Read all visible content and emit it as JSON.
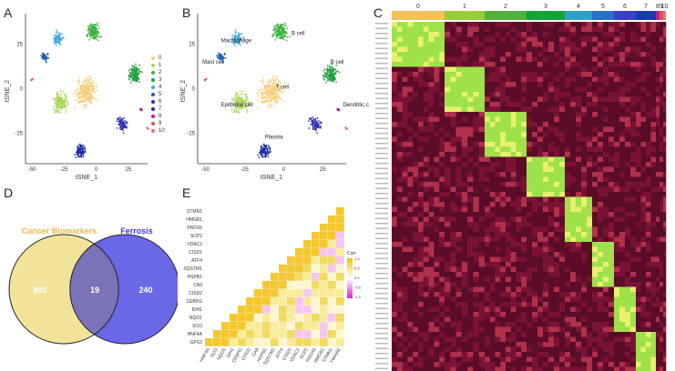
{
  "panels": {
    "A": {
      "label": "A",
      "xlabel": "tSNE_1",
      "ylabel": "tSNE_2",
      "xticks": [
        "-50",
        "-25",
        "0",
        "25"
      ],
      "yticks": [
        "25",
        "0",
        "-25"
      ],
      "legend": [
        "0",
        "1",
        "2",
        "3",
        "4",
        "5",
        "6",
        "7",
        "8",
        "9",
        "10"
      ]
    },
    "B": {
      "label": "B",
      "xlabel": "tSNE_1",
      "ylabel": "tSNE_2",
      "xticks": [
        "-50",
        "-25",
        "0",
        "25"
      ],
      "yticks": [
        "25",
        "0",
        "-25"
      ],
      "cell_labels": [
        "Macrophage",
        "Mast cell",
        "T cell",
        "Epithelial cell",
        "Dendritic c",
        "Plasma",
        "B cell",
        "B cell"
      ]
    },
    "C": {
      "label": "C",
      "clusters": [
        "0",
        "1",
        "2",
        "3",
        "4",
        "5",
        "6",
        "7",
        "8",
        "9",
        "10"
      ]
    },
    "D": {
      "label": "D",
      "set_a": "Cancer Biomarkers",
      "set_b": "Ferrosis",
      "only_a": "892",
      "overlap": "19",
      "only_b": "240"
    },
    "E": {
      "label": "E",
      "genes": [
        "STMN1",
        "HMGB1",
        "PRDX6",
        "SCP2",
        "VDAC2",
        "CISD1",
        "ATF4",
        "SQSTM1",
        "HSPB1",
        "CA9",
        "CISD2",
        "CEBPG",
        "IDH1",
        "NQO1",
        "SCO",
        "HNF4A",
        "GPX2"
      ],
      "xgenes": [
        "HNF4A",
        "SCO",
        "NQO1",
        "IDH1",
        "CEBPG",
        "CISD2",
        "CA9",
        "HSPB1",
        "SQSTM1",
        "ATF4",
        "CISD1",
        "VDAC2",
        "SCP2",
        "PRDX6",
        "HMGB1",
        "STMN1",
        "YWHAE"
      ],
      "legend_title": "Corr",
      "legend_ticks": [
        "1.0",
        "0.5",
        "0.0",
        "-0.5",
        "-1.0"
      ]
    }
  },
  "chart_data": [
    {
      "type": "scatter",
      "title": "A",
      "xlabel": "tSNE_1",
      "ylabel": "tSNE_2",
      "xlim": [
        -55,
        40
      ],
      "ylim": [
        -42,
        42
      ],
      "series": [
        {
          "name": "0",
          "color": "#f5cd7a",
          "center": [
            -8,
            -2
          ],
          "spread": 8,
          "n": 260
        },
        {
          "name": "1",
          "color": "#a9d65a",
          "center": [
            -28,
            -8
          ],
          "spread": 6,
          "n": 150
        },
        {
          "name": "2",
          "color": "#3cb23c",
          "center": [
            -2,
            32
          ],
          "spread": 5,
          "n": 150
        },
        {
          "name": "3",
          "color": "#24a040",
          "center": [
            30,
            8
          ],
          "spread": 5,
          "n": 140
        },
        {
          "name": "4",
          "color": "#45aad8",
          "center": [
            -30,
            28
          ],
          "spread": 4,
          "n": 80
        },
        {
          "name": "5",
          "color": "#1f5bb0",
          "center": [
            -40,
            18
          ],
          "spread": 3,
          "n": 40
        },
        {
          "name": "6",
          "color": "#2b2fb0",
          "center": [
            20,
            -20
          ],
          "spread": 4,
          "n": 80
        },
        {
          "name": "7",
          "color": "#1a2aa0",
          "center": [
            -12,
            -35
          ],
          "spread": 4,
          "n": 90
        },
        {
          "name": "8",
          "color": "#b8208b",
          "center": [
            35,
            -12
          ],
          "spread": 1,
          "n": 8
        },
        {
          "name": "9",
          "color": "#e05050",
          "center": [
            -50,
            5
          ],
          "spread": 1,
          "n": 6
        },
        {
          "name": "10",
          "color": "#f07070",
          "center": [
            40,
            -22
          ],
          "spread": 1,
          "n": 5
        }
      ]
    },
    {
      "type": "venn",
      "title": "D",
      "sets": [
        "Cancer Biomarkers",
        "Ferrosis"
      ],
      "values": {
        "only_a": 892,
        "overlap": 19,
        "only_b": 240
      }
    },
    {
      "type": "heatmap",
      "title": "E",
      "color_range": [
        -1.0,
        1.0
      ],
      "genes": [
        "STMN1",
        "HMGB1",
        "PRDX6",
        "SCP2",
        "VDAC2",
        "CISD1",
        "ATF4",
        "SQSTM1",
        "HSPB1",
        "CA9",
        "CISD2",
        "CEBPG",
        "IDH1",
        "NQO1",
        "SCO",
        "HNF4A",
        "GPX2"
      ]
    }
  ]
}
